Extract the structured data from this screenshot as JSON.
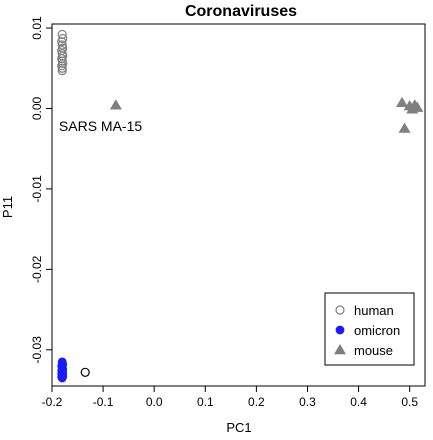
{
  "chart_data": {
    "type": "scatter",
    "title": "Coronaviruses",
    "xlabel": "PC1",
    "ylabel": "P11",
    "xlim": [
      -0.2,
      0.53
    ],
    "ylim": [
      -0.0345,
      0.0105
    ],
    "x_ticks": [
      -0.2,
      -0.1,
      0.0,
      0.1,
      0.2,
      0.3,
      0.4,
      0.5
    ],
    "x_tick_labels": [
      "-0.2",
      "-0.1",
      "0.0",
      "0.1",
      "0.2",
      "0.3",
      "0.4",
      "0.5"
    ],
    "y_ticks": [
      -0.03,
      -0.02,
      -0.01,
      0.0,
      0.01
    ],
    "y_tick_labels": [
      "-0.03",
      "-0.02",
      "-0.01",
      "0.00",
      "0.01"
    ],
    "grid": false,
    "legend_position": "bottom-right",
    "series": [
      {
        "name": "human",
        "marker": "open-circle",
        "color": "#7f7f7f",
        "points": [
          [
            -0.18,
            0.0092
          ],
          [
            -0.179,
            0.0087
          ],
          [
            -0.181,
            0.0083
          ],
          [
            -0.18,
            0.0079
          ],
          [
            -0.179,
            0.0075
          ],
          [
            -0.181,
            0.0072
          ],
          [
            -0.18,
            0.0068
          ],
          [
            -0.179,
            0.0065
          ],
          [
            -0.181,
            0.0062
          ],
          [
            -0.18,
            0.0059
          ],
          [
            -0.179,
            0.0056
          ],
          [
            -0.181,
            0.0053
          ],
          [
            -0.18,
            0.005
          ],
          [
            -0.18,
            0.0047
          ]
        ]
      },
      {
        "name": "omicron",
        "marker": "filled-circle",
        "color": "#1a1aff",
        "points": [
          [
            -0.18,
            -0.0315
          ],
          [
            -0.179,
            -0.0318
          ],
          [
            -0.181,
            -0.032
          ],
          [
            -0.18,
            -0.0322
          ],
          [
            -0.179,
            -0.0324
          ],
          [
            -0.181,
            -0.0326
          ],
          [
            -0.18,
            -0.0327
          ],
          [
            -0.179,
            -0.0329
          ],
          [
            -0.181,
            -0.033
          ],
          [
            -0.18,
            -0.0331
          ],
          [
            -0.179,
            -0.0333
          ],
          [
            -0.181,
            -0.0334
          ],
          [
            -0.18,
            -0.0335
          ]
        ]
      },
      {
        "name": "mouse",
        "marker": "filled-triangle",
        "color": "#7f7f7f",
        "points": [
          [
            -0.075,
            0.0004
          ],
          [
            0.485,
            0.0007
          ],
          [
            0.5,
            0.0003
          ],
          [
            0.51,
            0.0004
          ],
          [
            0.505,
            -0.0001
          ],
          [
            0.515,
            0.0001
          ],
          [
            0.49,
            -0.0025
          ]
        ]
      },
      {
        "marker": "open-circle",
        "color": "#000000",
        "points": [
          [
            -0.135,
            -0.0328
          ]
        ]
      }
    ],
    "annotations": [
      {
        "text": "SARS MA-15",
        "x": -0.105,
        "y": -0.0022
      }
    ]
  }
}
